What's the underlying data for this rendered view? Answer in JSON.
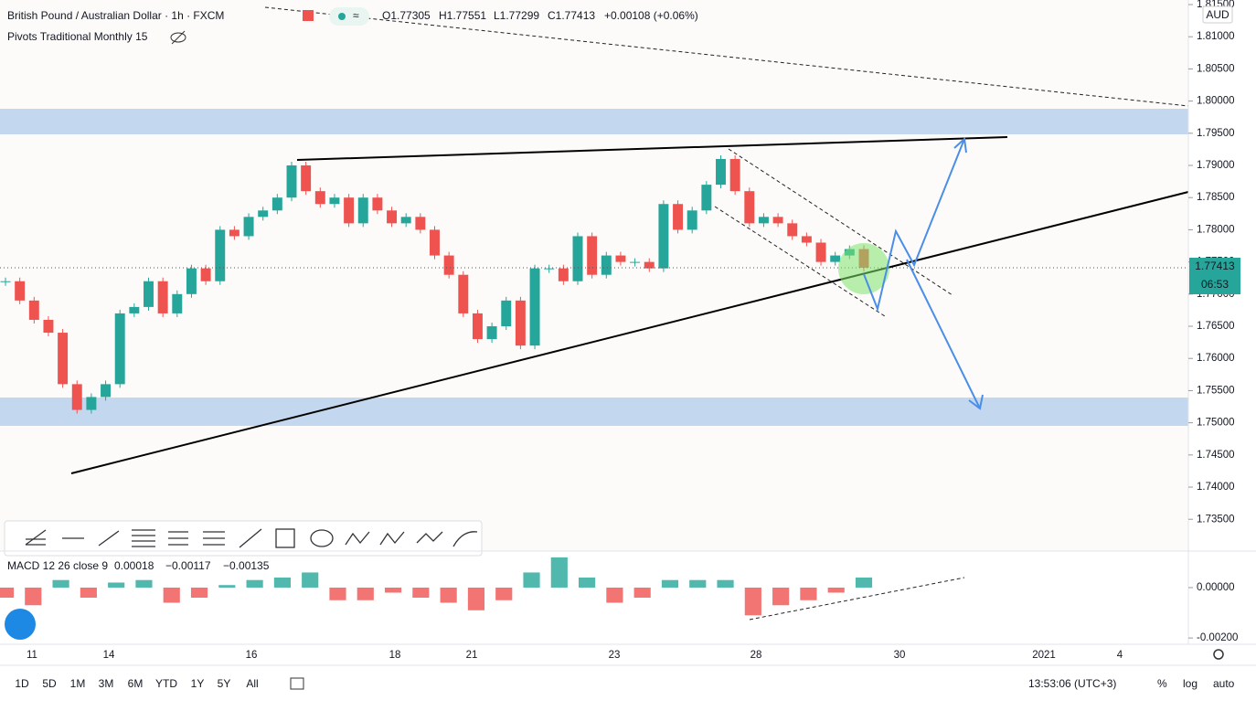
{
  "header": {
    "symbol": "British Pound / Australian Dollar · 1h · FXCM",
    "open": "O1.77305",
    "high": "H1.77551",
    "low": "L1.77299",
    "close": "C1.77413",
    "change": "+0.00108 (+0.06%)",
    "indicator": "Pivots Traditional Monthly 15"
  },
  "currency": "AUD",
  "last_price": "1.77413",
  "countdown": "06:53",
  "macd": {
    "label": "MACD 12 26 close 9",
    "hist": "0.00018",
    "macd": "−0.00117",
    "signal": "−0.00135"
  },
  "time_axis": [
    "11",
    "14",
    "16",
    "18",
    "21",
    "23",
    "28",
    "30",
    "2021",
    "4"
  ],
  "bottom_bar": {
    "ranges": [
      "1D",
      "5D",
      "1M",
      "3M",
      "6M",
      "YTD",
      "1Y",
      "5Y",
      "All"
    ],
    "clock": "13:53:06 (UTC+3)",
    "percent": "%",
    "log": "log",
    "auto": "auto"
  },
  "chart_data": {
    "type": "candlestick",
    "values": [
      1.772,
      1.769,
      1.766,
      1.764,
      1.756,
      1.752,
      1.754,
      1.756,
      1.767,
      1.768,
      1.772,
      1.767,
      1.77,
      1.774,
      1.772,
      1.78,
      1.779,
      1.782,
      1.783,
      1.785,
      1.79,
      1.786,
      1.784,
      1.785,
      1.781,
      1.785,
      1.783,
      1.781,
      1.782,
      1.78,
      1.776,
      1.773,
      1.767,
      1.763,
      1.765,
      1.769,
      1.762,
      1.774,
      1.774,
      1.772,
      1.779,
      1.773,
      1.776,
      1.775,
      1.775,
      1.774,
      1.784,
      1.78,
      1.783,
      1.787,
      1.791,
      1.786,
      1.781,
      1.782,
      1.781,
      1.779,
      1.778,
      1.775,
      1.776,
      1.777,
      1.7741
    ],
    "ylim": [
      1.73006,
      1.81571
    ],
    "yticks": [
      {
        "value": 1.815,
        "label": "1.81500"
      },
      {
        "value": 1.81,
        "label": "1.81000"
      },
      {
        "value": 1.805,
        "label": "1.80500"
      },
      {
        "value": 1.8,
        "label": "1.80000"
      },
      {
        "value": 1.795,
        "label": "1.79500"
      },
      {
        "value": 1.79,
        "label": "1.79000"
      },
      {
        "value": 1.785,
        "label": "1.78500"
      },
      {
        "value": 1.78,
        "label": "1.78000"
      },
      {
        "value": 1.775,
        "label": "1.77500"
      },
      {
        "value": 1.77,
        "label": "1.77000"
      },
      {
        "value": 1.765,
        "label": "1.76500"
      },
      {
        "value": 1.76,
        "label": "1.76000"
      },
      {
        "value": 1.755,
        "label": "1.75500"
      },
      {
        "value": 1.75,
        "label": "1.75000"
      },
      {
        "value": 1.745,
        "label": "1.74500"
      },
      {
        "value": 1.74,
        "label": "1.74000"
      },
      {
        "value": 1.735,
        "label": "1.73500"
      }
    ],
    "macd_histogram": [
      -0.0004,
      -0.0007,
      0.0003,
      -0.0004,
      0.0002,
      0.0003,
      -0.0006,
      -0.0004,
      0.0001,
      0.0003,
      0.0004,
      0.0006,
      -0.0005,
      -0.0005,
      -0.0002,
      -0.0004,
      -0.0006,
      -0.0009,
      -0.0005,
      0.0006,
      0.0012,
      0.0004,
      -0.0006,
      -0.0004,
      0.0003,
      0.0003,
      0.0003,
      -0.0011,
      -0.0007,
      -0.0005,
      -0.0002,
      0.0004
    ],
    "y2lim": [
      -0.00225,
      0.00145
    ],
    "y2ticks": [
      {
        "value": 0,
        "label": "0.00000"
      },
      {
        "value": -0.002,
        "label": "-0.00200"
      }
    ],
    "up_color": "#26a69a",
    "down_color": "#ef5350"
  }
}
